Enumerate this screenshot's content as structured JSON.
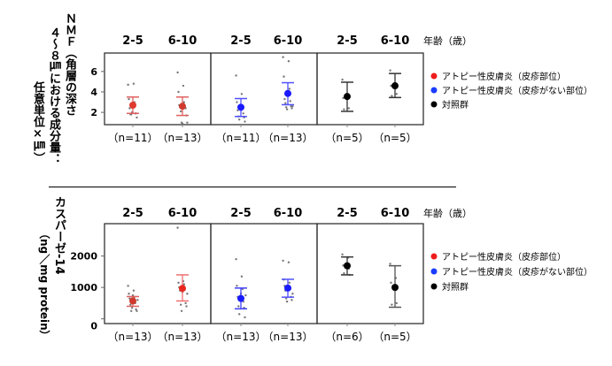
{
  "chart_data": [
    {
      "type": "scatter",
      "ylabel_lines": [
        "ＮＭＦ（角層の深さ",
        "４～８㎛における成分量：",
        "任意単位×㎛）"
      ],
      "yticks": [
        2,
        4,
        6
      ],
      "ylim": [
        0.8,
        7.8
      ],
      "age_axis_label": "年齢（歳）",
      "legend_position": "right",
      "legend": [
        {
          "name": "アトピー性皮膚炎（皮疹部位）",
          "color": "#ee1c1c"
        },
        {
          "name": "アトピー性皮膚炎（皮疹がない部位）",
          "color": "#1a3cff"
        },
        {
          "name": "対照群",
          "color": "#000000"
        }
      ],
      "groups": [
        {
          "panel": 0,
          "age": "2-5",
          "n_label": "（n=11）",
          "color": "#e03a2e",
          "bar_color": "#e06060",
          "mean": 2.7,
          "err_low": 1.9,
          "err_high": 3.5,
          "points": [
            4.7,
            4.8,
            3.3,
            3.0,
            2.4,
            1.9,
            1.8,
            1.9,
            1.8,
            1.5,
            2.0
          ]
        },
        {
          "panel": 0,
          "age": "6-10",
          "n_label": "（n=13）",
          "color": "#d03a2e",
          "bar_color": "#e06060",
          "mean": 2.6,
          "err_low": 1.7,
          "err_high": 3.5,
          "points": [
            5.9,
            4.6,
            4.0,
            3.0,
            2.7,
            2.6,
            2.5,
            2.4,
            2.1,
            1.7,
            1.0,
            1.0,
            0.9
          ]
        },
        {
          "panel": 1,
          "age": "2-5",
          "n_label": "（n=11）",
          "color": "#1a1aff",
          "bar_color": "#5050ff",
          "mean": 2.5,
          "err_low": 1.6,
          "err_high": 3.35,
          "points": [
            5.6,
            3.8,
            3.0,
            2.5,
            2.2,
            1.9,
            1.6,
            1.5,
            1.3,
            1.1,
            2.3
          ]
        },
        {
          "panel": 1,
          "age": "6-10",
          "n_label": "（n=13）",
          "color": "#1a1aff",
          "bar_color": "#5050ff",
          "mean": 3.85,
          "err_low": 2.75,
          "err_high": 4.9,
          "points": [
            7.4,
            7.0,
            5.5,
            4.3,
            3.3,
            3.1,
            2.9,
            2.6,
            2.5,
            2.4,
            2.3,
            2.6,
            3.6
          ]
        },
        {
          "panel": 2,
          "age": "2-5",
          "n_label": "（n=5）",
          "color": "#000000",
          "bar_color": "#333333",
          "mean": 3.55,
          "err_low": 2.1,
          "err_high": 4.95,
          "points": [
            5.2,
            3.6,
            3.4,
            2.4,
            2.3
          ]
        },
        {
          "panel": 2,
          "age": "6-10",
          "n_label": "（n=5）",
          "color": "#000000",
          "bar_color": "#333333",
          "mean": 4.6,
          "err_low": 3.45,
          "err_high": 5.8,
          "points": [
            6.1,
            4.7,
            4.6,
            3.8,
            3.6
          ]
        }
      ]
    },
    {
      "type": "scatter",
      "ylabel_lines": [
        "カスパーゼ-14",
        "（ng／mg protein）"
      ],
      "yticks": [
        0,
        1000,
        2000
      ],
      "ylim": [
        -150,
        3030
      ],
      "age_axis_label": "年齢（歳）",
      "legend_position": "right",
      "legend": [
        {
          "name": "アトピー性皮膚炎（皮疹部位）",
          "color": "#ee1c1c"
        },
        {
          "name": "アトピー性皮膚炎（皮疹がない部位）",
          "color": "#1a3cff"
        },
        {
          "name": "対照群",
          "color": "#000000"
        }
      ],
      "groups": [
        {
          "panel": 0,
          "age": "2-5",
          "n_label": "（n=13）",
          "color": "#d03a2e",
          "bar_color": "#e06060",
          "mean": 570,
          "err_low": 400,
          "err_high": 710,
          "points": [
            1050,
            900,
            800,
            700,
            650,
            500,
            450,
            300,
            250,
            250,
            350,
            600,
            750
          ]
        },
        {
          "panel": 0,
          "age": "6-10",
          "n_label": "（n=13）",
          "color": "#e8281e",
          "bar_color": "#f07070",
          "mean": 970,
          "err_low": 570,
          "err_high": 1400,
          "points": [
            2900,
            1200,
            1150,
            1100,
            1000,
            950,
            900,
            500,
            450,
            400,
            250,
            800,
            850
          ]
        },
        {
          "panel": 1,
          "age": "2-5",
          "n_label": "（n=13）",
          "color": "#1a1aff",
          "bar_color": "#4040ff",
          "mean": 650,
          "err_low": 320,
          "err_high": 980,
          "points": [
            1900,
            1350,
            1050,
            950,
            700,
            550,
            400,
            350,
            150,
            50,
            600,
            750,
            800
          ]
        },
        {
          "panel": 1,
          "age": "6-10",
          "n_label": "（n=13）",
          "color": "#1a1aff",
          "bar_color": "#5050ff",
          "mean": 980,
          "err_low": 690,
          "err_high": 1260,
          "points": [
            1850,
            1800,
            1250,
            1150,
            1050,
            950,
            900,
            700,
            650,
            600,
            550,
            800,
            1000
          ]
        },
        {
          "panel": 2,
          "age": "2-5",
          "n_label": "（n=6）",
          "color": "#000000",
          "bar_color": "#333333",
          "mean": 1690,
          "err_low": 1400,
          "err_high": 1970,
          "points": [
            2050,
            1950,
            1700,
            1600,
            1450,
            1400
          ]
        },
        {
          "panel": 2,
          "age": "6-10",
          "n_label": "（n=5）",
          "color": "#000000",
          "bar_color": "#555555",
          "mean": 1000,
          "err_low": 370,
          "err_high": 1690,
          "points": [
            1750,
            1300,
            1150,
            500,
            450
          ]
        }
      ]
    }
  ]
}
